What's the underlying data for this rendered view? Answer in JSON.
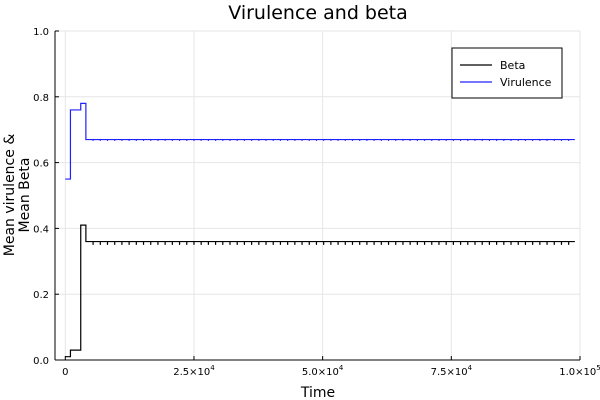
{
  "chart_data": {
    "type": "line",
    "title": "Virulence and beta",
    "xlabel": "Time",
    "ylabel_lines": [
      "Mean virulence &",
      "Mean Beta"
    ],
    "xlim": [
      -2000,
      100000
    ],
    "ylim": [
      0,
      1.0
    ],
    "grid": true,
    "legend_position": "top-right",
    "x_ticks": [
      0,
      25000,
      50000,
      75000,
      100000
    ],
    "x_tick_labels": [
      {
        "mantissa": "0",
        "exponent": ""
      },
      {
        "mantissa": "2.5×10",
        "exponent": "4"
      },
      {
        "mantissa": "5.0×10",
        "exponent": "4"
      },
      {
        "mantissa": "7.5×10",
        "exponent": "4"
      },
      {
        "mantissa": "1.0×10",
        "exponent": "5"
      }
    ],
    "y_ticks": [
      0,
      0.2,
      0.4,
      0.6,
      0.8,
      1.0
    ],
    "y_tick_labels": [
      "0.0",
      "0.2",
      "0.4",
      "0.6",
      "0.8",
      "1.0"
    ],
    "series": [
      {
        "name": "Beta",
        "color": "#000000",
        "step": true,
        "points": [
          [
            0,
            0.01
          ],
          [
            1000,
            0.03
          ],
          [
            3000,
            0.41
          ],
          [
            4000,
            0.36
          ],
          [
            99000,
            0.36
          ]
        ],
        "ripple": {
          "from": 4000,
          "to": 99000,
          "period": 1400,
          "depth": 0.01
        }
      },
      {
        "name": "Virulence",
        "color": "#2020ff",
        "step": true,
        "points": [
          [
            0,
            0.55
          ],
          [
            1000,
            0.76
          ],
          [
            2400,
            0.76
          ],
          [
            2700,
            0.76
          ],
          [
            3000,
            0.78
          ],
          [
            4000,
            0.67
          ],
          [
            99000,
            0.67
          ]
        ],
        "ripple": {
          "from": 4000,
          "to": 99000,
          "period": 1400,
          "depth": 0.004
        }
      }
    ]
  }
}
